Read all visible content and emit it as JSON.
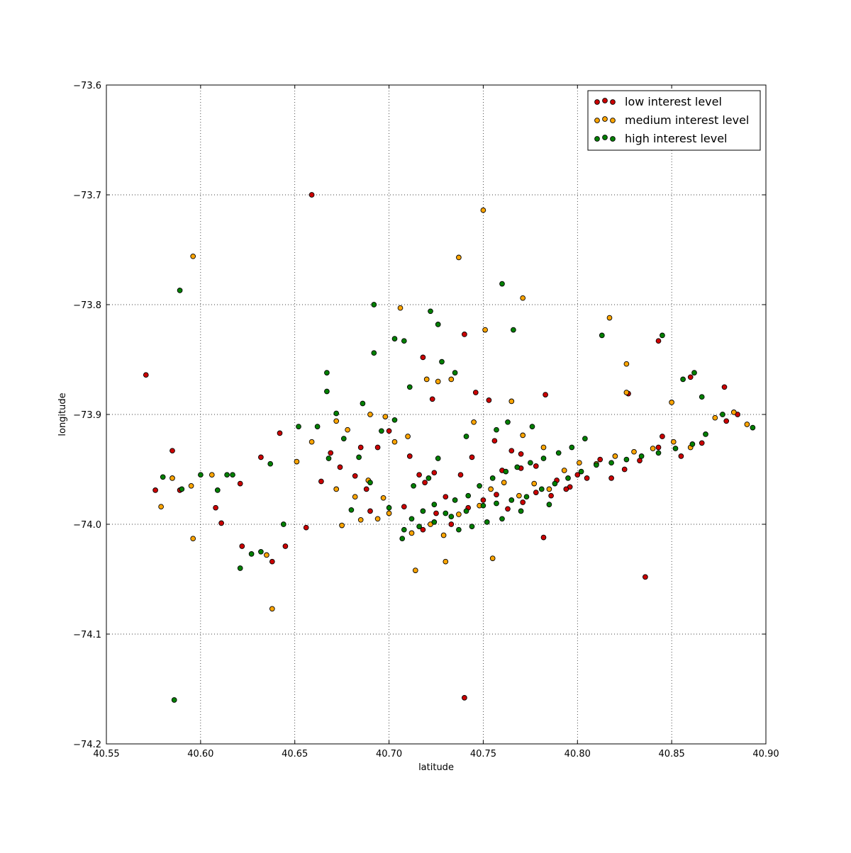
{
  "chart_data": {
    "type": "scatter",
    "title": "",
    "xlabel": "latitude",
    "ylabel": "longitude",
    "xlim": [
      40.55,
      40.9
    ],
    "ylim": [
      -74.2,
      -73.6
    ],
    "x_ticks": [
      "40.55",
      "40.60",
      "40.65",
      "40.70",
      "40.75",
      "40.80",
      "40.85",
      "40.90"
    ],
    "y_ticks": [
      "−73.6",
      "−73.7",
      "−73.8",
      "−73.9",
      "−74.0",
      "−74.1",
      "−74.2"
    ],
    "grid": true,
    "legend_position": "top-right",
    "series": [
      {
        "name": "low interest level",
        "color": "#cc0000",
        "points": [
          [
            40.659,
            -73.7
          ],
          [
            40.571,
            -73.864
          ],
          [
            40.74,
            -74.158
          ],
          [
            40.836,
            -74.048
          ],
          [
            40.843,
            -73.833
          ],
          [
            40.782,
            -74.012
          ],
          [
            40.783,
            -73.882
          ],
          [
            40.827,
            -73.881
          ],
          [
            40.878,
            -73.875
          ],
          [
            40.642,
            -73.917
          ],
          [
            40.585,
            -73.933
          ],
          [
            40.576,
            -73.969
          ],
          [
            40.589,
            -73.969
          ],
          [
            40.608,
            -73.985
          ],
          [
            40.611,
            -73.999
          ],
          [
            40.621,
            -73.963
          ],
          [
            40.632,
            -73.939
          ],
          [
            40.622,
            -74.02
          ],
          [
            40.638,
            -74.034
          ],
          [
            40.645,
            -74.02
          ],
          [
            40.656,
            -74.003
          ],
          [
            40.664,
            -73.961
          ],
          [
            40.669,
            -73.935
          ],
          [
            40.674,
            -73.948
          ],
          [
            40.682,
            -73.956
          ],
          [
            40.688,
            -73.968
          ],
          [
            40.694,
            -73.93
          ],
          [
            40.7,
            -73.915
          ],
          [
            40.711,
            -73.938
          ],
          [
            40.716,
            -73.955
          ],
          [
            40.719,
            -73.962
          ],
          [
            40.724,
            -73.953
          ],
          [
            40.73,
            -73.975
          ],
          [
            40.738,
            -73.955
          ],
          [
            40.744,
            -73.939
          ],
          [
            40.756,
            -73.924
          ],
          [
            40.765,
            -73.933
          ],
          [
            40.77,
            -73.936
          ],
          [
            40.718,
            -73.848
          ],
          [
            40.723,
            -73.886
          ],
          [
            40.74,
            -73.827
          ],
          [
            40.746,
            -73.88
          ],
          [
            40.753,
            -73.887
          ],
          [
            40.76,
            -73.951
          ],
          [
            40.77,
            -73.949
          ],
          [
            40.778,
            -73.947
          ],
          [
            40.789,
            -73.96
          ],
          [
            40.796,
            -73.966
          ],
          [
            40.805,
            -73.958
          ],
          [
            40.812,
            -73.941
          ],
          [
            40.818,
            -73.958
          ],
          [
            40.825,
            -73.95
          ],
          [
            40.833,
            -73.942
          ],
          [
            40.843,
            -73.93
          ],
          [
            40.855,
            -73.938
          ],
          [
            40.866,
            -73.926
          ],
          [
            40.879,
            -73.906
          ],
          [
            40.885,
            -73.9
          ],
          [
            40.845,
            -73.92
          ],
          [
            40.86,
            -73.866
          ],
          [
            40.708,
            -73.984
          ],
          [
            40.718,
            -74.005
          ],
          [
            40.725,
            -73.99
          ],
          [
            40.733,
            -74.0
          ],
          [
            40.742,
            -73.985
          ],
          [
            40.75,
            -73.978
          ],
          [
            40.757,
            -73.973
          ],
          [
            40.763,
            -73.986
          ],
          [
            40.771,
            -73.98
          ],
          [
            40.778,
            -73.971
          ],
          [
            40.786,
            -73.974
          ],
          [
            40.794,
            -73.968
          ],
          [
            40.8,
            -73.955
          ],
          [
            40.685,
            -73.93
          ],
          [
            40.69,
            -73.988
          ]
        ]
      },
      {
        "name": "medium interest level",
        "color": "#ffa500",
        "points": [
          [
            40.75,
            -73.714
          ],
          [
            40.596,
            -73.756
          ],
          [
            40.737,
            -73.757
          ],
          [
            40.771,
            -73.794
          ],
          [
            40.817,
            -73.812
          ],
          [
            40.706,
            -73.803
          ],
          [
            40.826,
            -73.854
          ],
          [
            40.826,
            -73.88
          ],
          [
            40.85,
            -73.889
          ],
          [
            40.638,
            -74.077
          ],
          [
            40.596,
            -74.013
          ],
          [
            40.714,
            -74.042
          ],
          [
            40.73,
            -74.034
          ],
          [
            40.755,
            -74.031
          ],
          [
            40.579,
            -73.984
          ],
          [
            40.585,
            -73.958
          ],
          [
            40.595,
            -73.965
          ],
          [
            40.606,
            -73.955
          ],
          [
            40.635,
            -74.028
          ],
          [
            40.651,
            -73.943
          ],
          [
            40.659,
            -73.925
          ],
          [
            40.672,
            -73.906
          ],
          [
            40.678,
            -73.914
          ],
          [
            40.69,
            -73.9
          ],
          [
            40.698,
            -73.902
          ],
          [
            40.703,
            -73.925
          ],
          [
            40.71,
            -73.92
          ],
          [
            40.72,
            -73.868
          ],
          [
            40.726,
            -73.87
          ],
          [
            40.733,
            -73.868
          ],
          [
            40.745,
            -73.907
          ],
          [
            40.751,
            -73.823
          ],
          [
            40.765,
            -73.888
          ],
          [
            40.771,
            -73.919
          ],
          [
            40.782,
            -73.93
          ],
          [
            40.675,
            -74.001
          ],
          [
            40.685,
            -73.996
          ],
          [
            40.694,
            -73.995
          ],
          [
            40.7,
            -73.99
          ],
          [
            40.712,
            -74.008
          ],
          [
            40.722,
            -74.0
          ],
          [
            40.729,
            -74.01
          ],
          [
            40.737,
            -73.991
          ],
          [
            40.748,
            -73.983
          ],
          [
            40.754,
            -73.968
          ],
          [
            40.761,
            -73.962
          ],
          [
            40.769,
            -73.974
          ],
          [
            40.777,
            -73.963
          ],
          [
            40.785,
            -73.968
          ],
          [
            40.793,
            -73.951
          ],
          [
            40.801,
            -73.944
          ],
          [
            40.81,
            -73.945
          ],
          [
            40.82,
            -73.938
          ],
          [
            40.83,
            -73.934
          ],
          [
            40.84,
            -73.931
          ],
          [
            40.851,
            -73.925
          ],
          [
            40.86,
            -73.93
          ],
          [
            40.873,
            -73.903
          ],
          [
            40.883,
            -73.898
          ],
          [
            40.89,
            -73.909
          ],
          [
            40.682,
            -73.975
          ],
          [
            40.689,
            -73.96
          ],
          [
            40.697,
            -73.976
          ],
          [
            40.672,
            -73.968
          ]
        ]
      },
      {
        "name": "high interest level",
        "color": "#008000",
        "points": [
          [
            40.586,
            -74.16
          ],
          [
            40.589,
            -73.787
          ],
          [
            40.692,
            -73.8
          ],
          [
            40.76,
            -73.781
          ],
          [
            40.813,
            -73.828
          ],
          [
            40.845,
            -73.828
          ],
          [
            40.722,
            -73.806
          ],
          [
            40.726,
            -73.818
          ],
          [
            40.766,
            -73.823
          ],
          [
            40.667,
            -73.862
          ],
          [
            40.667,
            -73.879
          ],
          [
            40.711,
            -73.875
          ],
          [
            40.692,
            -73.844
          ],
          [
            40.703,
            -73.831
          ],
          [
            40.708,
            -73.833
          ],
          [
            40.672,
            -73.899
          ],
          [
            40.686,
            -73.89
          ],
          [
            40.58,
            -73.957
          ],
          [
            40.59,
            -73.968
          ],
          [
            40.6,
            -73.955
          ],
          [
            40.609,
            -73.969
          ],
          [
            40.614,
            -73.955
          ],
          [
            40.617,
            -73.955
          ],
          [
            40.621,
            -74.04
          ],
          [
            40.627,
            -74.027
          ],
          [
            40.632,
            -74.025
          ],
          [
            40.637,
            -73.945
          ],
          [
            40.644,
            -74.0
          ],
          [
            40.652,
            -73.911
          ],
          [
            40.662,
            -73.911
          ],
          [
            40.668,
            -73.94
          ],
          [
            40.676,
            -73.922
          ],
          [
            40.684,
            -73.939
          ],
          [
            40.696,
            -73.915
          ],
          [
            40.703,
            -73.905
          ],
          [
            40.707,
            -74.013
          ],
          [
            40.712,
            -73.995
          ],
          [
            40.718,
            -73.988
          ],
          [
            40.724,
            -73.982
          ],
          [
            40.73,
            -73.99
          ],
          [
            40.735,
            -73.978
          ],
          [
            40.742,
            -73.974
          ],
          [
            40.748,
            -73.965
          ],
          [
            40.755,
            -73.958
          ],
          [
            40.762,
            -73.952
          ],
          [
            40.768,
            -73.948
          ],
          [
            40.775,
            -73.944
          ],
          [
            40.782,
            -73.94
          ],
          [
            40.79,
            -73.935
          ],
          [
            40.797,
            -73.93
          ],
          [
            40.804,
            -73.922
          ],
          [
            40.708,
            -74.005
          ],
          [
            40.716,
            -74.002
          ],
          [
            40.724,
            -73.998
          ],
          [
            40.733,
            -73.993
          ],
          [
            40.741,
            -73.988
          ],
          [
            40.75,
            -73.983
          ],
          [
            40.757,
            -73.981
          ],
          [
            40.765,
            -73.978
          ],
          [
            40.773,
            -73.975
          ],
          [
            40.781,
            -73.968
          ],
          [
            40.788,
            -73.963
          ],
          [
            40.795,
            -73.958
          ],
          [
            40.802,
            -73.952
          ],
          [
            40.81,
            -73.946
          ],
          [
            40.818,
            -73.944
          ],
          [
            40.826,
            -73.941
          ],
          [
            40.834,
            -73.938
          ],
          [
            40.843,
            -73.935
          ],
          [
            40.852,
            -73.931
          ],
          [
            40.861,
            -73.927
          ],
          [
            40.868,
            -73.918
          ],
          [
            40.877,
            -73.9
          ],
          [
            40.893,
            -73.912
          ],
          [
            40.866,
            -73.884
          ],
          [
            40.856,
            -73.868
          ],
          [
            40.862,
            -73.862
          ],
          [
            40.757,
            -73.914
          ],
          [
            40.763,
            -73.907
          ],
          [
            40.728,
            -73.852
          ],
          [
            40.735,
            -73.862
          ],
          [
            40.776,
            -73.911
          ],
          [
            40.741,
            -73.92
          ],
          [
            40.713,
            -73.965
          ],
          [
            40.721,
            -73.958
          ],
          [
            40.726,
            -73.94
          ],
          [
            40.69,
            -73.962
          ],
          [
            40.68,
            -73.987
          ],
          [
            40.7,
            -73.985
          ],
          [
            40.744,
            -74.002
          ],
          [
            40.737,
            -74.005
          ],
          [
            40.752,
            -73.998
          ],
          [
            40.76,
            -73.995
          ],
          [
            40.77,
            -73.988
          ],
          [
            40.785,
            -73.982
          ]
        ]
      }
    ]
  }
}
